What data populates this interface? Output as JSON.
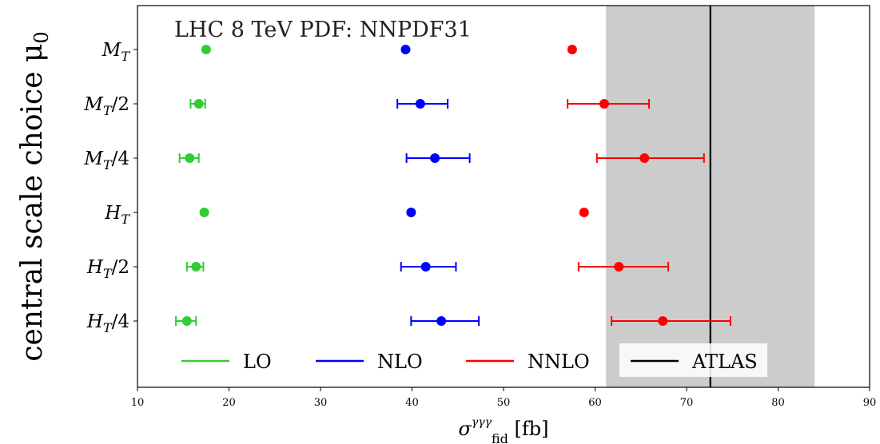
{
  "chart_data": {
    "type": "scatter",
    "annotation": "LHC 8 TeV PDF: NNPDF31",
    "xlabel": {
      "main": "σ",
      "sup": "γγγ",
      "sub": "fid",
      "unit": " [fb]"
    },
    "ylabel": {
      "main": "central scale choice μ",
      "sub": "0"
    },
    "xlim": [
      10,
      90
    ],
    "xticks": [
      10,
      20,
      30,
      40,
      50,
      60,
      70,
      80,
      90
    ],
    "categories": [
      {
        "main": "M",
        "sub": "T",
        "suffix": ""
      },
      {
        "main": "M",
        "sub": "T",
        "suffix": "/2"
      },
      {
        "main": "M",
        "sub": "T",
        "suffix": "/4"
      },
      {
        "main": "H",
        "sub": "T",
        "suffix": ""
      },
      {
        "main": "H",
        "sub": "T",
        "suffix": "/2"
      },
      {
        "main": "H",
        "sub": "T",
        "suffix": "/4"
      }
    ],
    "series": [
      {
        "name": "LO",
        "color": "#33cc33",
        "points": [
          {
            "value": 17.5,
            "low": null,
            "high": null
          },
          {
            "value": 16.7,
            "low": 15.8,
            "high": 17.4
          },
          {
            "value": 15.7,
            "low": 14.6,
            "high": 16.7
          },
          {
            "value": 17.3,
            "low": null,
            "high": null
          },
          {
            "value": 16.4,
            "low": 15.4,
            "high": 17.2
          },
          {
            "value": 15.4,
            "low": 14.2,
            "high": 16.4
          }
        ]
      },
      {
        "name": "NLO",
        "color": "#0000ff",
        "points": [
          {
            "value": 39.3,
            "low": null,
            "high": null
          },
          {
            "value": 40.9,
            "low": 38.4,
            "high": 43.9
          },
          {
            "value": 42.5,
            "low": 39.4,
            "high": 46.3
          },
          {
            "value": 39.9,
            "low": null,
            "high": null
          },
          {
            "value": 41.5,
            "low": 38.8,
            "high": 44.8
          },
          {
            "value": 43.2,
            "low": 39.9,
            "high": 47.3
          }
        ]
      },
      {
        "name": "NNLO",
        "color": "#ff0000",
        "points": [
          {
            "value": 57.5,
            "low": null,
            "high": null
          },
          {
            "value": 61.0,
            "low": 57.0,
            "high": 65.9
          },
          {
            "value": 65.4,
            "low": 60.2,
            "high": 71.9
          },
          {
            "value": 58.8,
            "low": null,
            "high": null
          },
          {
            "value": 62.6,
            "low": 58.2,
            "high": 68.0
          },
          {
            "value": 67.4,
            "low": 61.8,
            "high": 74.8
          }
        ]
      }
    ],
    "reference": {
      "name": "ATLAS",
      "color": "#000000",
      "value": 72.6,
      "band_low": 61.2,
      "band_high": 84.0,
      "band_color": "#cccccc"
    },
    "legend_position": "bottom",
    "grid": false
  }
}
